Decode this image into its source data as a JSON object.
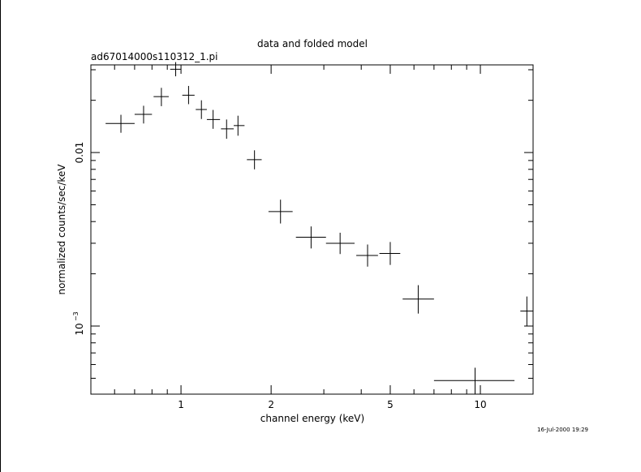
{
  "chart_data": {
    "type": "scatter",
    "title": "data and folded model",
    "subtitle": "ad67014000s110312_1.pi",
    "xlabel": "channel energy (keV)",
    "ylabel": "normalized counts/sec/keV",
    "timestamp": "16-Jul-2000 19:29",
    "x_scale": "log",
    "y_scale": "log",
    "xlim": [
      0.5,
      15
    ],
    "ylim": [
      0.000405,
      0.032
    ],
    "x_ticks": [
      {
        "value": 1,
        "label": "1"
      },
      {
        "value": 2,
        "label": "2"
      },
      {
        "value": 5,
        "label": "5"
      },
      {
        "value": 10,
        "label": "10"
      }
    ],
    "y_ticks": [
      {
        "value": 0.01,
        "label": "0.01"
      },
      {
        "value": 0.001,
        "label": "10",
        "exponent": "−3"
      }
    ],
    "grid": false,
    "series": [
      {
        "points": [
          {
            "x": 0.63,
            "xlo": 0.56,
            "xhi": 0.7,
            "y": 0.0147,
            "ylo": 0.013,
            "yhi": 0.0165
          },
          {
            "x": 0.75,
            "xlo": 0.7,
            "xhi": 0.8,
            "y": 0.0166,
            "ylo": 0.0147,
            "yhi": 0.0186
          },
          {
            "x": 0.86,
            "xlo": 0.81,
            "xhi": 0.91,
            "y": 0.021,
            "ylo": 0.0185,
            "yhi": 0.0236
          },
          {
            "x": 0.96,
            "xlo": 0.92,
            "xhi": 1.0,
            "y": 0.0302,
            "ylo": 0.0275,
            "yhi": 0.0332
          },
          {
            "x": 1.06,
            "xlo": 1.01,
            "xhi": 1.11,
            "y": 0.0214,
            "ylo": 0.019,
            "yhi": 0.0242
          },
          {
            "x": 1.17,
            "xlo": 1.12,
            "xhi": 1.22,
            "y": 0.0177,
            "ylo": 0.0156,
            "yhi": 0.02
          },
          {
            "x": 1.28,
            "xlo": 1.22,
            "xhi": 1.35,
            "y": 0.0155,
            "ylo": 0.0137,
            "yhi": 0.0176
          },
          {
            "x": 1.42,
            "xlo": 1.36,
            "xhi": 1.5,
            "y": 0.0137,
            "ylo": 0.012,
            "yhi": 0.0155
          },
          {
            "x": 1.55,
            "xlo": 1.5,
            "xhi": 1.63,
            "y": 0.0143,
            "ylo": 0.0125,
            "yhi": 0.0163
          },
          {
            "x": 1.76,
            "xlo": 1.66,
            "xhi": 1.86,
            "y": 0.0091,
            "ylo": 0.008,
            "yhi": 0.0103
          },
          {
            "x": 2.15,
            "xlo": 1.96,
            "xhi": 2.36,
            "y": 0.00457,
            "ylo": 0.0039,
            "yhi": 0.00535
          },
          {
            "x": 2.72,
            "xlo": 2.42,
            "xhi": 3.05,
            "y": 0.00325,
            "ylo": 0.0028,
            "yhi": 0.00375
          },
          {
            "x": 3.4,
            "xlo": 3.05,
            "xhi": 3.8,
            "y": 0.003,
            "ylo": 0.0026,
            "yhi": 0.00345
          },
          {
            "x": 4.2,
            "xlo": 3.85,
            "xhi": 4.55,
            "y": 0.00255,
            "ylo": 0.0022,
            "yhi": 0.00295
          },
          {
            "x": 5.0,
            "xlo": 4.6,
            "xhi": 5.4,
            "y": 0.00262,
            "ylo": 0.00225,
            "yhi": 0.00305
          },
          {
            "x": 6.2,
            "xlo": 5.5,
            "xhi": 7.0,
            "y": 0.00143,
            "ylo": 0.00118,
            "yhi": 0.00172
          },
          {
            "x": 9.6,
            "xlo": 7.0,
            "xhi": 13.0,
            "y": 0.000485,
            "ylo": 0.000405,
            "yhi": 0.000575
          },
          {
            "x": 14.3,
            "xlo": 13.6,
            "xhi": 15.0,
            "y": 0.00122,
            "ylo": 0.001,
            "yhi": 0.00148
          }
        ]
      }
    ]
  }
}
